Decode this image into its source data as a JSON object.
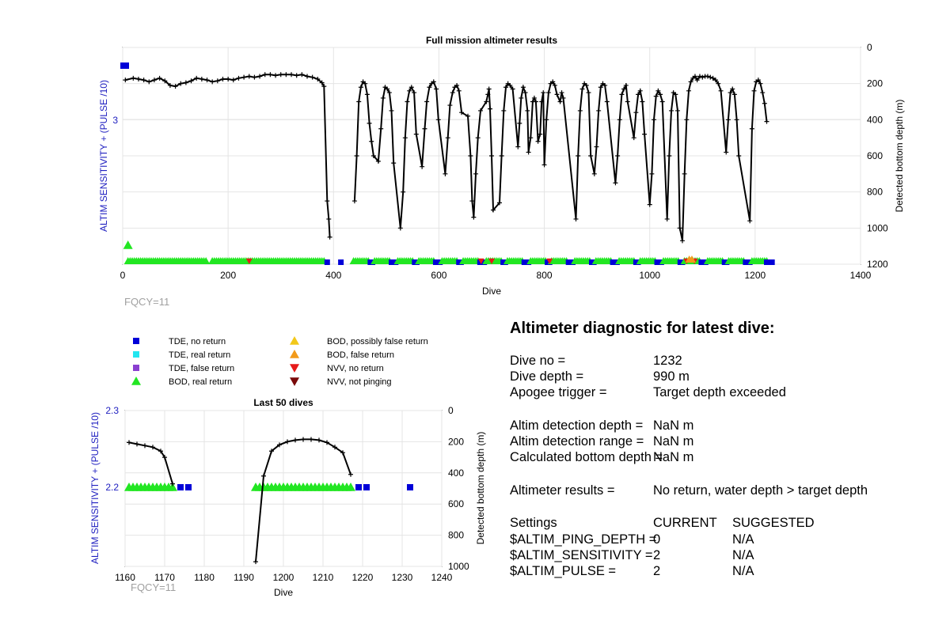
{
  "top_chart": {
    "title": "Full mission altimeter results",
    "xlabel": "Dive",
    "ylabel_left": "ALTIM SENSITIVITY + (PULSE /10)",
    "ylabel_right": "Detected bottom depth (m)",
    "xlim": [
      0,
      1400
    ],
    "xticks": [
      0,
      200,
      400,
      600,
      800,
      1000,
      1200,
      1400
    ],
    "yticks_right": [
      0,
      200,
      400,
      600,
      800,
      1000,
      1200
    ],
    "ytick_left": "3",
    "footnote": "FQCY=11"
  },
  "legend": [
    {
      "label": "TDE, no return",
      "marker": "square",
      "color": "#0000d8"
    },
    {
      "label": "TDE, real return",
      "marker": "square",
      "color": "#22e6f0"
    },
    {
      "label": "TDE, false return",
      "marker": "square",
      "color": "#8a3fd0"
    },
    {
      "label": "BOD, real return",
      "marker": "triangle-up",
      "color": "#22e622"
    },
    {
      "label": "BOD, possibly false return",
      "marker": "triangle-up",
      "color": "#f2c81a"
    },
    {
      "label": "BOD, false return",
      "marker": "triangle-up",
      "color": "#f29a1a"
    },
    {
      "label": "NVV, no return",
      "marker": "triangle-down",
      "color": "#e61a1a"
    },
    {
      "label": "NVV, not pinging",
      "marker": "triangle-down",
      "color": "#7a0a0a"
    }
  ],
  "bottom_chart": {
    "title": "Last 50 dives",
    "xlabel": "Dive",
    "ylabel_left": "ALTIM SENSITIVITY + (PULSE /10)",
    "ylabel_right": "Detected bottom depth (m)",
    "xlim": [
      1160,
      1240
    ],
    "xticks": [
      1160,
      1170,
      1180,
      1190,
      1200,
      1210,
      1220,
      1230,
      1240
    ],
    "ylim_left": [
      2.1,
      2.3
    ],
    "yticks_left": [
      "2.3",
      "2.2"
    ],
    "yticks_right": [
      0,
      200,
      400,
      600,
      800,
      1000
    ],
    "footnote": "FQCY=11"
  },
  "diagnostic": {
    "title": "Altimeter diagnostic for latest dive:",
    "rows": [
      {
        "label": "Dive no =",
        "value": "1232"
      },
      {
        "label": "Dive depth =",
        "value": "990 m"
      },
      {
        "label": "Apogee trigger =",
        "value": "Target depth exceeded"
      },
      {
        "label": "Altim detection depth =",
        "value": "NaN m"
      },
      {
        "label": "Altim detection range =",
        "value": "NaN m"
      },
      {
        "label": "Calculated bottom depth =",
        "value": "NaN m"
      },
      {
        "label": "Altimeter results =",
        "value": "No return, water depth > target depth"
      }
    ],
    "settings_header": {
      "label": "Settings",
      "current": "CURRENT",
      "suggested": "SUGGESTED"
    },
    "settings": [
      {
        "label": "$ALTIM_PING_DEPTH =",
        "current": "0",
        "suggested": "N/A"
      },
      {
        "label": "$ALTIM_SENSITIVITY =",
        "current": "2",
        "suggested": "N/A"
      },
      {
        "label": "$ALTIM_PULSE =",
        "current": "2",
        "suggested": "N/A"
      }
    ]
  },
  "chart_data": [
    {
      "type": "line",
      "title": "Full mission altimeter results",
      "xlabel": "Dive",
      "ylabel": "Detected bottom depth (m)",
      "xlim": [
        0,
        1400
      ],
      "ylim": [
        0,
        1200
      ],
      "y_reversed": true,
      "grid": true,
      "depth_series": {
        "name": "Detected bottom depth",
        "x": [
          5,
          20,
          30,
          40,
          50,
          60,
          70,
          80,
          90,
          100,
          110,
          120,
          130,
          140,
          150,
          160,
          170,
          180,
          190,
          200,
          210,
          220,
          230,
          240,
          250,
          260,
          270,
          280,
          290,
          300,
          310,
          320,
          330,
          340,
          350,
          360,
          370,
          378,
          382,
          388,
          391,
          393,
          440,
          444,
          448,
          452,
          456,
          460,
          464,
          468,
          472,
          476,
          485,
          490,
          494,
          498,
          502,
          506,
          510,
          514,
          527,
          532,
          536,
          540,
          544,
          548,
          553,
          557,
          568,
          573,
          577,
          582,
          586,
          590,
          595,
          599,
          612,
          617,
          621,
          626,
          630,
          634,
          638,
          643,
          655,
          660,
          663,
          666,
          670,
          674,
          679,
          690,
          693,
          695,
          697,
          700,
          703,
          715,
          719,
          723,
          727,
          731,
          735,
          740,
          750,
          753,
          756,
          760,
          764,
          768,
          770,
          774,
          778,
          781,
          784,
          788,
          792,
          795,
          798,
          800,
          804,
          808,
          812,
          816,
          820,
          824,
          830,
          833,
          836,
          860,
          864,
          868,
          872,
          876,
          880,
          884,
          888,
          895,
          899,
          903,
          907,
          911,
          915,
          919,
          935,
          939,
          943,
          947,
          951,
          955,
          958,
          970,
          974,
          978,
          982,
          986,
          990,
          1000,
          1004,
          1008,
          1012,
          1016,
          1020,
          1024,
          1033,
          1037,
          1041,
          1045,
          1049,
          1053,
          1057,
          1062,
          1066,
          1070,
          1074,
          1078,
          1082,
          1086,
          1090,
          1095,
          1100,
          1105,
          1110,
          1115,
          1120,
          1125,
          1130,
          1135,
          1145,
          1149,
          1153,
          1157,
          1161,
          1165,
          1169,
          1190,
          1194,
          1198,
          1202,
          1206,
          1210,
          1214,
          1218,
          1222
        ],
        "y": [
          180,
          170,
          175,
          180,
          190,
          180,
          170,
          185,
          210,
          215,
          200,
          195,
          185,
          170,
          175,
          180,
          190,
          185,
          175,
          175,
          180,
          170,
          165,
          160,
          165,
          160,
          150,
          150,
          155,
          150,
          150,
          150,
          155,
          150,
          160,
          165,
          175,
          195,
          215,
          850,
          950,
          1050,
          850,
          600,
          300,
          220,
          190,
          200,
          260,
          420,
          520,
          600,
          630,
          450,
          280,
          220,
          230,
          250,
          350,
          640,
          1000,
          800,
          500,
          300,
          240,
          220,
          250,
          480,
          660,
          450,
          300,
          220,
          200,
          190,
          230,
          400,
          700,
          500,
          320,
          250,
          220,
          210,
          240,
          360,
          380,
          600,
          850,
          940,
          700,
          500,
          350,
          300,
          260,
          230,
          340,
          600,
          900,
          860,
          600,
          350,
          220,
          200,
          210,
          230,
          550,
          420,
          280,
          220,
          250,
          350,
          580,
          500,
          300,
          280,
          300,
          520,
          480,
          300,
          250,
          650,
          400,
          250,
          200,
          190,
          210,
          260,
          300,
          250,
          280,
          950,
          600,
          350,
          230,
          200,
          210,
          250,
          600,
          700,
          550,
          350,
          220,
          200,
          210,
          300,
          750,
          600,
          400,
          260,
          230,
          210,
          300,
          500,
          360,
          260,
          240,
          300,
          480,
          870,
          700,
          400,
          270,
          240,
          260,
          300,
          950,
          600,
          350,
          250,
          260,
          350,
          1000,
          1070,
          700,
          400,
          240,
          190,
          170,
          160,
          180,
          160,
          165,
          160,
          160,
          165,
          170,
          180,
          200,
          240,
          580,
          400,
          250,
          230,
          260,
          400,
          600,
          960,
          450,
          240,
          190,
          180,
          200,
          250,
          310,
          410
        ]
      },
      "altim_sensitivity_series": {
        "name": "ALTIM SENSITIVITY + (PULSE /10)",
        "x": [
          0,
          10
        ],
        "y": [
          3.3,
          3.3
        ]
      },
      "marker_events": {
        "note": "Green BOD real return triangles along baseline for most dives; blue TDE no return squares intermittent; red/orange NVV markers near dives 240, 680, 810, 1080"
      }
    },
    {
      "type": "line",
      "title": "Last 50 dives",
      "xlabel": "Dive",
      "ylabel": "Detected bottom depth (m)",
      "xlim": [
        1160,
        1240
      ],
      "ylim": [
        0,
        1000
      ],
      "y_reversed": true,
      "grid": true,
      "depth_series": {
        "name": "Detected bottom depth",
        "x": [
          1161,
          1163,
          1165,
          1167,
          1169,
          1170,
          1172,
          1193,
          1195,
          1197,
          1199,
          1201,
          1203,
          1205,
          1207,
          1209,
          1211,
          1213,
          1215,
          1217
        ],
        "y": [
          205,
          215,
          225,
          235,
          260,
          300,
          470,
          970,
          420,
          260,
          220,
          200,
          190,
          185,
          185,
          190,
          205,
          235,
          270,
          410
        ]
      },
      "bod_real_return": {
        "x": [
          1161,
          1162,
          1163,
          1164,
          1165,
          1166,
          1167,
          1168,
          1169,
          1170,
          1171,
          1172,
          1193,
          1194,
          1195,
          1196,
          1197,
          1198,
          1199,
          1200,
          1201,
          1202,
          1203,
          1204,
          1205,
          1206,
          1207,
          1208,
          1209,
          1210,
          1211,
          1212,
          1213,
          1214,
          1215,
          1216,
          1217
        ],
        "y": 2.2
      },
      "tde_no_return": {
        "x": [
          1174,
          1176,
          1219,
          1221,
          1232
        ],
        "y": 2.2
      }
    }
  ]
}
